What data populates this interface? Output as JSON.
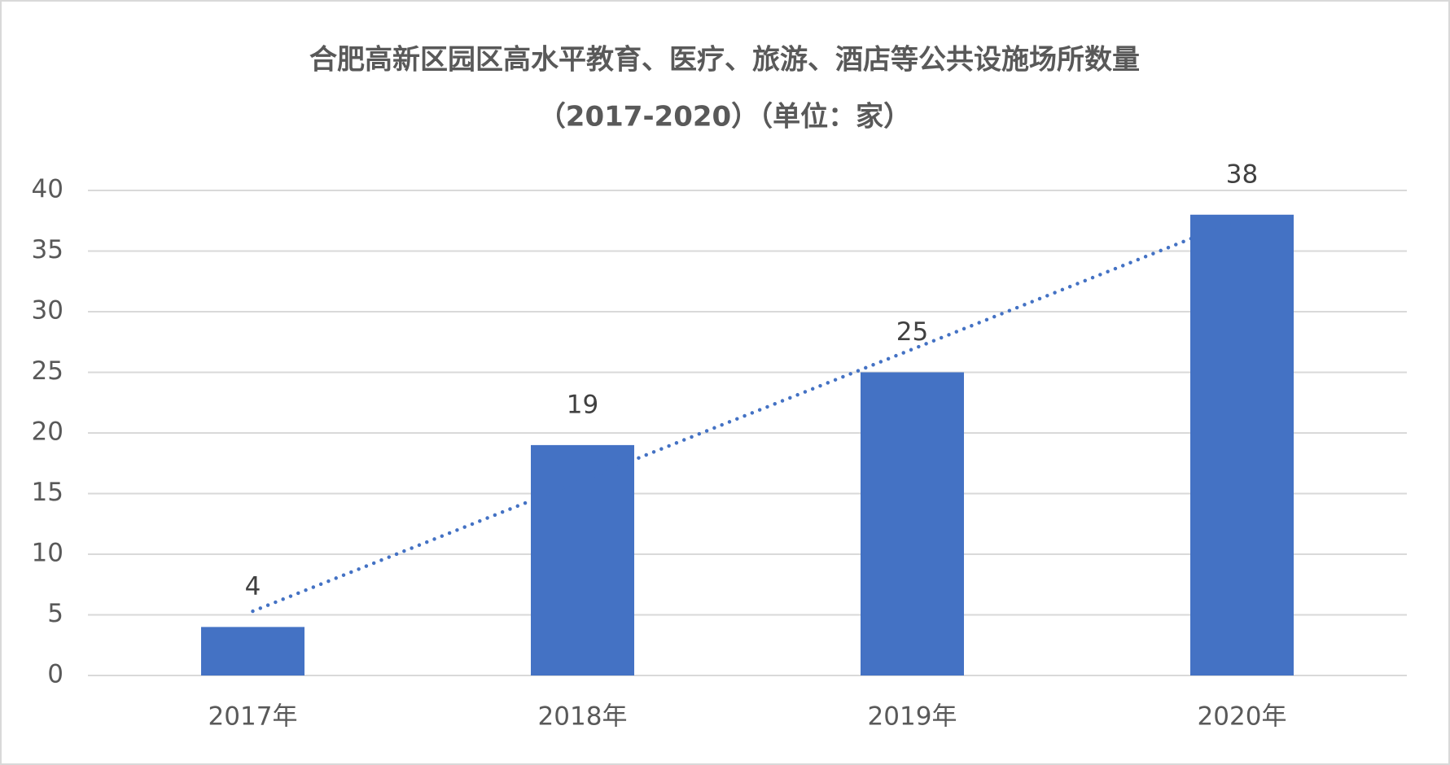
{
  "chart_data": {
    "type": "bar",
    "title": "合肥高新区园区高水平教育、医疗、旅游、酒店等公共设施场所数量",
    "subtitle": "（2017-2020）（单位：家）",
    "categories": [
      "2017年",
      "2018年",
      "2019年",
      "2020年"
    ],
    "values": [
      4,
      19,
      25,
      38
    ],
    "color": "#4472c4",
    "ylim": [
      0,
      40
    ],
    "yticks": [
      0,
      5,
      10,
      15,
      20,
      25,
      30,
      35,
      40
    ],
    "grid": true,
    "trendline": "linear"
  }
}
